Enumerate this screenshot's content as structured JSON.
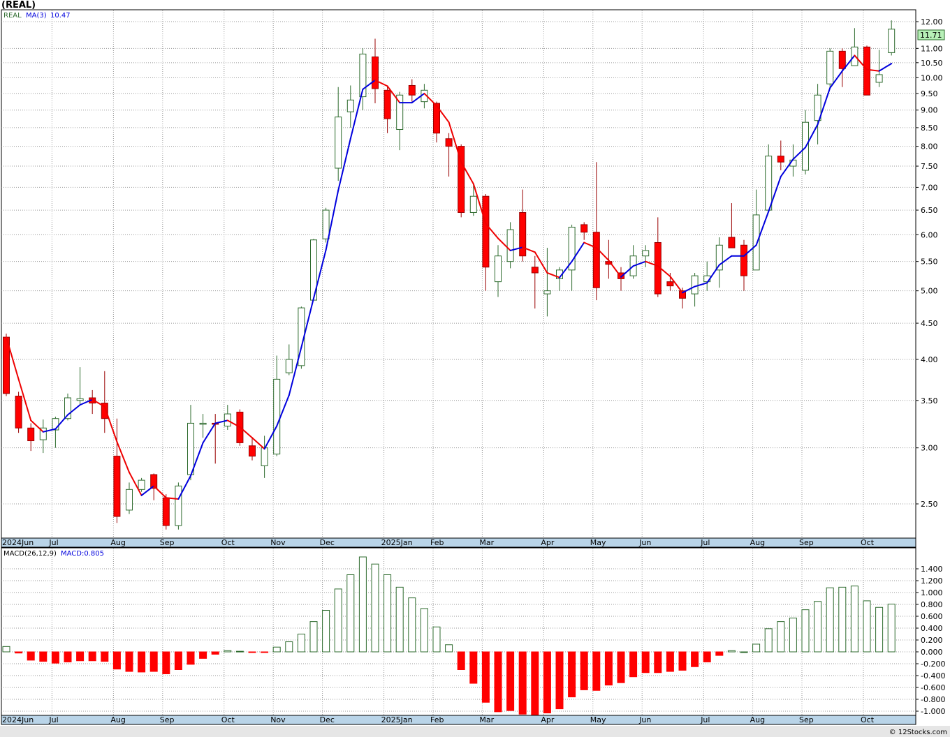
{
  "ticker_title": "(REAL)",
  "credit": "© 12Stocks.com",
  "colors": {
    "up": "#2e6b2e",
    "down": "#ff0000",
    "ma_up": "#0000dd",
    "ma_down": "#ee0000",
    "grid": "#9a9a9a",
    "axis_bar": "#b9d4e8"
  },
  "price_panel": {
    "legend_symbol": "REAL",
    "legend_ma": "MA(3)",
    "legend_ma_value": "10.47",
    "last_price_label": "11.71",
    "last_price": 11.71,
    "scale": "log",
    "y_ticks": [
      2.5,
      3.0,
      3.5,
      4.0,
      4.5,
      5.0,
      5.5,
      6.0,
      6.5,
      7.0,
      7.5,
      8.0,
      8.5,
      9.0,
      9.5,
      10.0,
      10.5,
      11.0,
      12.0
    ],
    "y_tick_labels": [
      "2.50",
      "3.00",
      "3.50",
      "4.00",
      "4.50",
      "5.00",
      "5.50",
      "6.00",
      "6.50",
      "7.00",
      "7.50",
      "8.00",
      "8.50",
      "9.00",
      "9.50",
      "10.00",
      "10.50",
      "11.00",
      "12.00"
    ]
  },
  "macd_panel": {
    "legend_name": "MACD(26,12,9)",
    "legend_value": "MACD:0.805",
    "y_ticks": [
      -1.0,
      -0.8,
      -0.6,
      -0.4,
      -0.2,
      0.0,
      0.2,
      0.4,
      0.6,
      0.8,
      1.0,
      1.2,
      1.4
    ],
    "y_tick_labels": [
      "-1.000",
      "-0.800",
      "-0.600",
      "-0.400",
      "-0.200",
      "0.000",
      "0.200",
      "0.400",
      "0.600",
      "0.800",
      "1.000",
      "1.200",
      "1.400"
    ]
  },
  "x_labels": [
    {
      "label": "2024Jun",
      "week": 0
    },
    {
      "label": "Jul",
      "week": 4
    },
    {
      "label": "Aug",
      "week": 9
    },
    {
      "label": "Sep",
      "week": 13
    },
    {
      "label": "Oct",
      "week": 18
    },
    {
      "label": "Nov",
      "week": 22
    },
    {
      "label": "Dec",
      "week": 26
    },
    {
      "label": "2025Jan",
      "week": 31
    },
    {
      "label": "Feb",
      "week": 35
    },
    {
      "label": "Mar",
      "week": 39
    },
    {
      "label": "Apr",
      "week": 44
    },
    {
      "label": "May",
      "week": 48
    },
    {
      "label": "Jun",
      "week": 52
    },
    {
      "label": "Jul",
      "week": 57
    },
    {
      "label": "Aug",
      "week": 61
    },
    {
      "label": "Sep",
      "week": 65
    },
    {
      "label": "Oct",
      "week": 70
    }
  ],
  "chart_data": {
    "type": "candlestick",
    "period": "weekly",
    "candles": [
      {
        "o": 4.3,
        "h": 4.35,
        "l": 3.55,
        "c": 3.58
      },
      {
        "o": 3.55,
        "h": 3.6,
        "l": 3.15,
        "c": 3.2
      },
      {
        "o": 3.2,
        "h": 3.25,
        "l": 2.97,
        "c": 3.07
      },
      {
        "o": 3.08,
        "h": 3.29,
        "l": 2.95,
        "c": 3.2
      },
      {
        "o": 3.18,
        "h": 3.32,
        "l": 3.0,
        "c": 3.3
      },
      {
        "o": 3.3,
        "h": 3.58,
        "l": 3.28,
        "c": 3.53
      },
      {
        "o": 3.5,
        "h": 3.9,
        "l": 3.45,
        "c": 3.52
      },
      {
        "o": 3.53,
        "h": 3.62,
        "l": 3.35,
        "c": 3.47
      },
      {
        "o": 3.47,
        "h": 3.85,
        "l": 3.15,
        "c": 3.3
      },
      {
        "o": 2.92,
        "h": 3.3,
        "l": 2.35,
        "c": 2.4
      },
      {
        "o": 2.45,
        "h": 2.68,
        "l": 2.42,
        "c": 2.62
      },
      {
        "o": 2.62,
        "h": 2.72,
        "l": 2.6,
        "c": 2.7
      },
      {
        "o": 2.75,
        "h": 2.76,
        "l": 2.53,
        "c": 2.63
      },
      {
        "o": 2.55,
        "h": 2.58,
        "l": 2.3,
        "c": 2.33
      },
      {
        "o": 2.33,
        "h": 2.68,
        "l": 2.3,
        "c": 2.65
      },
      {
        "o": 2.75,
        "h": 3.45,
        "l": 2.7,
        "c": 3.25
      },
      {
        "o": 3.25,
        "h": 3.35,
        "l": 3.1,
        "c": 3.25
      },
      {
        "o": 3.25,
        "h": 3.35,
        "l": 2.85,
        "c": 3.24
      },
      {
        "o": 3.22,
        "h": 3.45,
        "l": 3.18,
        "c": 3.35
      },
      {
        "o": 3.37,
        "h": 3.4,
        "l": 3.02,
        "c": 3.05
      },
      {
        "o": 3.02,
        "h": 3.1,
        "l": 2.88,
        "c": 2.92
      },
      {
        "o": 2.83,
        "h": 3.12,
        "l": 2.72,
        "c": 3.0
      },
      {
        "o": 2.94,
        "h": 4.05,
        "l": 2.92,
        "c": 3.75
      },
      {
        "o": 3.83,
        "h": 4.2,
        "l": 3.8,
        "c": 4.0
      },
      {
        "o": 3.92,
        "h": 4.75,
        "l": 3.88,
        "c": 4.73
      },
      {
        "o": 4.85,
        "h": 5.92,
        "l": 4.85,
        "c": 5.9
      },
      {
        "o": 5.92,
        "h": 6.55,
        "l": 5.85,
        "c": 6.5
      },
      {
        "o": 7.45,
        "h": 9.7,
        "l": 7.15,
        "c": 8.8
      },
      {
        "o": 8.95,
        "h": 9.75,
        "l": 8.5,
        "c": 9.3
      },
      {
        "o": 9.4,
        "h": 11.0,
        "l": 9.0,
        "c": 10.8
      },
      {
        "o": 10.7,
        "h": 11.35,
        "l": 9.2,
        "c": 9.65
      },
      {
        "o": 9.6,
        "h": 9.75,
        "l": 8.35,
        "c": 8.75
      },
      {
        "o": 8.45,
        "h": 9.55,
        "l": 7.9,
        "c": 9.45
      },
      {
        "o": 9.75,
        "h": 9.95,
        "l": 9.25,
        "c": 9.45
      },
      {
        "o": 9.25,
        "h": 9.8,
        "l": 9.05,
        "c": 9.6
      },
      {
        "o": 9.2,
        "h": 9.25,
        "l": 8.1,
        "c": 8.35
      },
      {
        "o": 8.2,
        "h": 8.35,
        "l": 7.25,
        "c": 8.0
      },
      {
        "o": 8.0,
        "h": 8.05,
        "l": 6.35,
        "c": 6.45
      },
      {
        "o": 6.45,
        "h": 7.05,
        "l": 6.38,
        "c": 6.8
      },
      {
        "o": 6.8,
        "h": 6.85,
        "l": 5.0,
        "c": 5.4
      },
      {
        "o": 5.15,
        "h": 5.8,
        "l": 4.9,
        "c": 5.6
      },
      {
        "o": 5.5,
        "h": 6.25,
        "l": 5.38,
        "c": 6.1
      },
      {
        "o": 6.45,
        "h": 6.95,
        "l": 5.5,
        "c": 5.6
      },
      {
        "o": 5.4,
        "h": 5.6,
        "l": 4.72,
        "c": 5.3
      },
      {
        "o": 4.95,
        "h": 5.75,
        "l": 4.6,
        "c": 5.0
      },
      {
        "o": 5.2,
        "h": 5.4,
        "l": 5.0,
        "c": 5.35
      },
      {
        "o": 5.35,
        "h": 6.2,
        "l": 5.0,
        "c": 6.15
      },
      {
        "o": 6.2,
        "h": 6.25,
        "l": 5.9,
        "c": 6.05
      },
      {
        "o": 6.05,
        "h": 7.6,
        "l": 4.85,
        "c": 5.05
      },
      {
        "o": 5.5,
        "h": 5.9,
        "l": 5.2,
        "c": 5.45
      },
      {
        "o": 5.3,
        "h": 5.4,
        "l": 5.0,
        "c": 5.2
      },
      {
        "o": 5.25,
        "h": 5.8,
        "l": 5.2,
        "c": 5.6
      },
      {
        "o": 5.6,
        "h": 5.8,
        "l": 5.4,
        "c": 5.7
      },
      {
        "o": 5.85,
        "h": 6.35,
        "l": 4.9,
        "c": 4.95
      },
      {
        "o": 5.15,
        "h": 5.3,
        "l": 5.0,
        "c": 5.08
      },
      {
        "o": 5.0,
        "h": 5.05,
        "l": 4.72,
        "c": 4.88
      },
      {
        "o": 4.95,
        "h": 5.3,
        "l": 4.75,
        "c": 5.25
      },
      {
        "o": 5.15,
        "h": 5.5,
        "l": 5.0,
        "c": 5.25
      },
      {
        "o": 5.35,
        "h": 5.95,
        "l": 5.05,
        "c": 5.8
      },
      {
        "o": 5.95,
        "h": 6.65,
        "l": 5.75,
        "c": 5.75
      },
      {
        "o": 5.8,
        "h": 5.9,
        "l": 5.0,
        "c": 5.25
      },
      {
        "o": 5.35,
        "h": 6.95,
        "l": 5.35,
        "c": 6.4
      },
      {
        "o": 6.5,
        "h": 8.05,
        "l": 6.45,
        "c": 7.75
      },
      {
        "o": 7.75,
        "h": 8.15,
        "l": 7.4,
        "c": 7.6
      },
      {
        "o": 7.5,
        "h": 8.05,
        "l": 7.25,
        "c": 7.65
      },
      {
        "o": 7.4,
        "h": 9.0,
        "l": 7.3,
        "c": 8.65
      },
      {
        "o": 8.7,
        "h": 9.8,
        "l": 8.05,
        "c": 9.45
      },
      {
        "o": 9.8,
        "h": 11.0,
        "l": 9.7,
        "c": 10.9
      },
      {
        "o": 10.9,
        "h": 11.0,
        "l": 9.7,
        "c": 10.3
      },
      {
        "o": 10.4,
        "h": 11.75,
        "l": 10.4,
        "c": 11.05
      },
      {
        "o": 11.05,
        "h": 11.1,
        "l": 9.45,
        "c": 9.45
      },
      {
        "o": 9.85,
        "h": 10.95,
        "l": 9.7,
        "c": 10.1
      },
      {
        "o": 10.85,
        "h": 12.05,
        "l": 10.75,
        "c": 11.71
      }
    ],
    "ma3": [
      4.3,
      3.75,
      3.28,
      3.16,
      3.19,
      3.34,
      3.45,
      3.51,
      3.43,
      3.06,
      2.77,
      2.57,
      2.65,
      2.55,
      2.54,
      2.74,
      3.05,
      3.25,
      3.28,
      3.21,
      3.1,
      2.99,
      3.22,
      3.56,
      4.16,
      4.88,
      5.71,
      6.93,
      8.2,
      9.63,
      9.92,
      9.73,
      9.22,
      9.22,
      9.5,
      9.13,
      8.65,
      7.6,
      7.08,
      6.22,
      5.93,
      5.7,
      5.76,
      5.67,
      5.3,
      5.22,
      5.5,
      5.85,
      5.75,
      5.52,
      5.23,
      5.42,
      5.5,
      5.42,
      5.24,
      4.97,
      5.07,
      5.13,
      5.44,
      5.6,
      5.6,
      5.8,
      6.47,
      7.25,
      7.67,
      7.97,
      8.59,
      9.67,
      10.22,
      10.75,
      10.27,
      10.22,
      10.47
    ],
    "macd": [
      0.09,
      -0.02,
      -0.14,
      -0.16,
      -0.19,
      -0.17,
      -0.15,
      -0.15,
      -0.16,
      -0.29,
      -0.33,
      -0.34,
      -0.33,
      -0.37,
      -0.3,
      -0.21,
      -0.11,
      -0.04,
      0.02,
      0.01,
      -0.01,
      -0.01,
      0.08,
      0.17,
      0.3,
      0.51,
      0.7,
      1.06,
      1.3,
      1.6,
      1.48,
      1.3,
      1.09,
      0.91,
      0.73,
      0.42,
      0.12,
      -0.3,
      -0.53,
      -0.85,
      -1.01,
      -0.99,
      -1.05,
      -1.06,
      -1.03,
      -0.96,
      -0.76,
      -0.64,
      -0.65,
      -0.56,
      -0.52,
      -0.42,
      -0.35,
      -0.35,
      -0.33,
      -0.31,
      -0.25,
      -0.17,
      -0.06,
      0.02,
      0.0,
      0.13,
      0.39,
      0.51,
      0.57,
      0.71,
      0.85,
      1.08,
      1.09,
      1.11,
      0.86,
      0.75,
      0.805
    ]
  }
}
